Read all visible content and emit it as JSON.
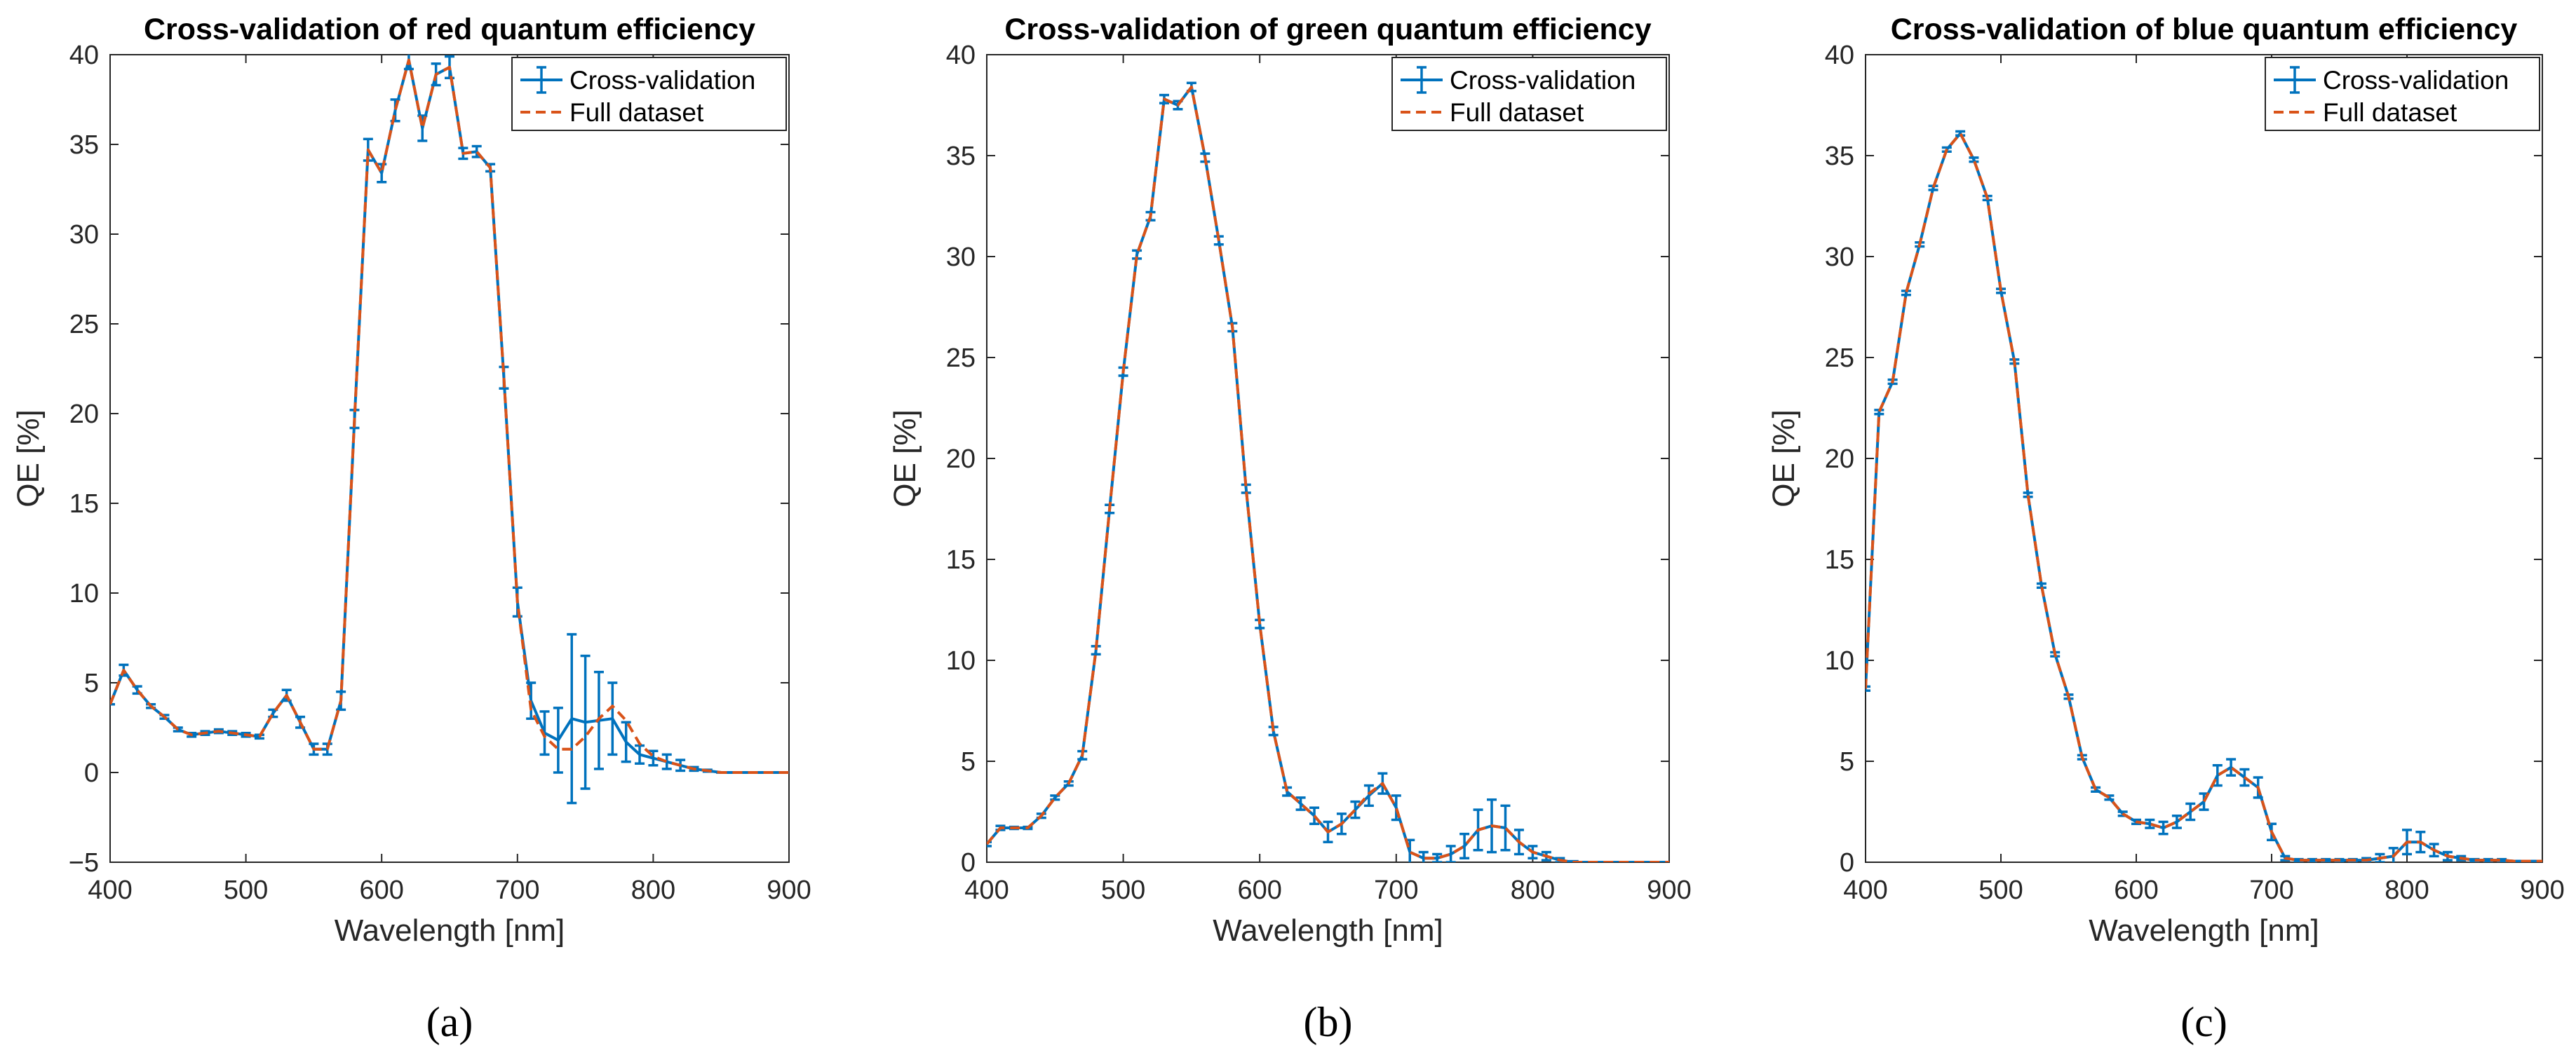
{
  "chart_data": [
    {
      "type": "line",
      "title": "Cross-validation of red quantum efficiency",
      "xlabel": "Wavelength [nm]",
      "ylabel": "QE [%]",
      "xlim": [
        400,
        900
      ],
      "ylim": [
        -5,
        40
      ],
      "xticks": [
        400,
        500,
        600,
        700,
        800,
        900
      ],
      "xtick_labels": [
        "400",
        "500",
        "600",
        "700",
        "800",
        "900"
      ],
      "yticks": [
        -5,
        0,
        5,
        10,
        15,
        20,
        25,
        30,
        35,
        40
      ],
      "ytick_labels": [
        "−5",
        "0",
        "5",
        "10",
        "15",
        "20",
        "25",
        "30",
        "35",
        "40"
      ],
      "legend": [
        "Cross-validation",
        "Full dataset"
      ],
      "legend_position": "top-right",
      "panel_label": "(a)",
      "x": [
        400,
        410,
        420,
        430,
        440,
        450,
        460,
        470,
        480,
        490,
        500,
        510,
        520,
        530,
        540,
        550,
        560,
        570,
        580,
        590,
        600,
        610,
        620,
        630,
        640,
        650,
        660,
        670,
        680,
        690,
        700,
        710,
        720,
        730,
        740,
        750,
        760,
        770,
        780,
        790,
        800,
        810,
        820,
        830,
        840,
        850,
        860,
        870,
        880,
        890,
        900
      ],
      "series": [
        {
          "name": "Cross-validation",
          "color": "#0072BD",
          "style": "solid",
          "values": [
            3.8,
            5.7,
            4.6,
            3.7,
            3.1,
            2.4,
            2.1,
            2.2,
            2.3,
            2.2,
            2.1,
            2.0,
            3.3,
            4.3,
            2.8,
            1.3,
            1.3,
            4.0,
            19.7,
            34.7,
            33.4,
            36.9,
            39.7,
            35.9,
            38.9,
            39.3,
            34.5,
            34.6,
            33.7,
            22.0,
            9.5,
            4.0,
            2.2,
            1.8,
            3.0,
            2.8,
            2.9,
            3.0,
            1.7,
            1.0,
            0.8,
            0.6,
            0.4,
            0.2,
            0.1,
            0.0,
            0.0,
            0.0,
            0.0,
            0.0,
            0.0
          ],
          "errors": [
            0,
            0.3,
            0.2,
            0.1,
            0.1,
            0.1,
            0.1,
            0.1,
            0.1,
            0.1,
            0.1,
            0.1,
            0.2,
            0.3,
            0.3,
            0.3,
            0.3,
            0.5,
            0.5,
            0.6,
            0.5,
            0.6,
            0.5,
            0.7,
            0.6,
            0.6,
            0.3,
            0.3,
            0.2,
            0.6,
            0.8,
            1.0,
            1.2,
            1.8,
            4.7,
            3.7,
            2.7,
            2.0,
            1.1,
            0.5,
            0.4,
            0.4,
            0.3,
            0.1,
            0.05,
            0,
            0,
            0,
            0,
            0,
            0
          ]
        },
        {
          "name": "Full dataset",
          "color": "#D95319",
          "style": "dashed",
          "values": [
            3.8,
            5.7,
            4.6,
            3.7,
            3.1,
            2.4,
            2.1,
            2.2,
            2.3,
            2.2,
            2.1,
            2.0,
            3.3,
            4.3,
            2.8,
            1.3,
            1.3,
            4.0,
            19.7,
            34.7,
            33.4,
            36.9,
            39.7,
            35.9,
            38.9,
            39.3,
            34.5,
            34.6,
            33.7,
            22.0,
            9.5,
            3.5,
            2.0,
            1.3,
            1.3,
            2.0,
            3.0,
            3.7,
            2.9,
            1.6,
            0.9,
            0.6,
            0.4,
            0.2,
            0.1,
            0.0,
            0.0,
            0.0,
            0.0,
            0.0,
            0.0
          ]
        }
      ]
    },
    {
      "type": "line",
      "title": "Cross-validation of green quantum efficiency",
      "xlabel": "Wavelength [nm]",
      "ylabel": "QE [%]",
      "xlim": [
        400,
        900
      ],
      "ylim": [
        0,
        40
      ],
      "xticks": [
        400,
        500,
        600,
        700,
        800,
        900
      ],
      "xtick_labels": [
        "400",
        "500",
        "600",
        "700",
        "800",
        "900"
      ],
      "yticks": [
        0,
        5,
        10,
        15,
        20,
        25,
        30,
        35,
        40
      ],
      "ytick_labels": [
        "0",
        "5",
        "10",
        "15",
        "20",
        "25",
        "30",
        "35",
        "40"
      ],
      "legend": [
        "Cross-validation",
        "Full dataset"
      ],
      "legend_position": "top-right",
      "panel_label": "(b)",
      "x": [
        400,
        410,
        420,
        430,
        440,
        450,
        460,
        470,
        480,
        490,
        500,
        510,
        520,
        530,
        540,
        550,
        560,
        570,
        580,
        590,
        600,
        610,
        620,
        630,
        640,
        650,
        660,
        670,
        680,
        690,
        700,
        710,
        720,
        730,
        740,
        750,
        760,
        770,
        780,
        790,
        800,
        810,
        820,
        830,
        840,
        850,
        860,
        870,
        880,
        890,
        900
      ],
      "series": [
        {
          "name": "Cross-validation",
          "color": "#0072BD",
          "style": "solid",
          "values": [
            0.9,
            1.7,
            1.7,
            1.7,
            2.3,
            3.2,
            3.9,
            5.3,
            10.5,
            17.5,
            24.3,
            30.1,
            32.0,
            37.8,
            37.5,
            38.4,
            34.9,
            30.8,
            26.5,
            18.5,
            11.8,
            6.5,
            3.5,
            2.9,
            2.3,
            1.5,
            1.9,
            2.6,
            3.3,
            3.9,
            2.7,
            0.5,
            0.2,
            0.2,
            0.4,
            0.8,
            1.6,
            1.8,
            1.7,
            1.0,
            0.5,
            0.3,
            0.1,
            0.0,
            0.0,
            0.0,
            0.0,
            0.0,
            0.0,
            0.0,
            0.0
          ],
          "errors": [
            0.1,
            0.1,
            0.05,
            0.05,
            0.1,
            0.1,
            0.1,
            0.2,
            0.2,
            0.2,
            0.2,
            0.2,
            0.2,
            0.2,
            0.2,
            0.2,
            0.2,
            0.2,
            0.2,
            0.2,
            0.2,
            0.2,
            0.2,
            0.3,
            0.4,
            0.5,
            0.5,
            0.4,
            0.5,
            0.5,
            0.6,
            0.6,
            0.3,
            0.2,
            0.4,
            0.6,
            1.0,
            1.3,
            1.1,
            0.6,
            0.3,
            0.2,
            0.1,
            0.05,
            0,
            0,
            0,
            0,
            0,
            0,
            0
          ]
        },
        {
          "name": "Full dataset",
          "color": "#D95319",
          "style": "dashed",
          "values": [
            0.9,
            1.7,
            1.7,
            1.7,
            2.3,
            3.2,
            3.9,
            5.3,
            10.5,
            17.5,
            24.3,
            30.1,
            32.0,
            37.8,
            37.5,
            38.4,
            34.9,
            30.8,
            26.5,
            18.5,
            11.8,
            6.5,
            3.5,
            2.9,
            2.3,
            1.5,
            1.9,
            2.6,
            3.4,
            3.9,
            2.7,
            0.5,
            0.2,
            0.2,
            0.4,
            0.8,
            1.6,
            1.8,
            1.7,
            1.0,
            0.5,
            0.3,
            0.1,
            0.0,
            0.0,
            0.0,
            0.0,
            0.0,
            0.0,
            0.0,
            0.0
          ]
        }
      ]
    },
    {
      "type": "line",
      "title": "Cross-validation of blue quantum efficiency",
      "xlabel": "Wavelength [nm]",
      "ylabel": "QE [%]",
      "xlim": [
        400,
        900
      ],
      "ylim": [
        0,
        40
      ],
      "xticks": [
        400,
        500,
        600,
        700,
        800,
        900
      ],
      "xtick_labels": [
        "400",
        "500",
        "600",
        "700",
        "800",
        "900"
      ],
      "yticks": [
        0,
        5,
        10,
        15,
        20,
        25,
        30,
        35,
        40
      ],
      "ytick_labels": [
        "0",
        "5",
        "10",
        "15",
        "20",
        "25",
        "30",
        "35",
        "40"
      ],
      "legend": [
        "Cross-validation",
        "Full dataset"
      ],
      "legend_position": "top-right",
      "panel_label": "(c)",
      "x": [
        400,
        410,
        420,
        430,
        440,
        450,
        460,
        470,
        480,
        490,
        500,
        510,
        520,
        530,
        540,
        550,
        560,
        570,
        580,
        590,
        600,
        610,
        620,
        630,
        640,
        650,
        660,
        670,
        680,
        690,
        700,
        710,
        720,
        730,
        740,
        750,
        760,
        770,
        780,
        790,
        800,
        810,
        820,
        830,
        840,
        850,
        860,
        870,
        880,
        890,
        900
      ],
      "series": [
        {
          "name": "Cross-validation",
          "color": "#0072BD",
          "style": "solid",
          "values": [
            8.6,
            22.3,
            23.8,
            28.2,
            30.6,
            33.4,
            35.3,
            36.1,
            34.8,
            32.9,
            28.3,
            24.8,
            18.2,
            13.7,
            10.3,
            8.2,
            5.2,
            3.6,
            3.2,
            2.4,
            2.0,
            1.9,
            1.7,
            2.0,
            2.5,
            3.0,
            4.3,
            4.7,
            4.2,
            3.7,
            1.5,
            0.2,
            0.1,
            0.1,
            0.1,
            0.1,
            0.1,
            0.1,
            0.2,
            0.3,
            1.0,
            1.0,
            0.6,
            0.3,
            0.2,
            0.1,
            0.1,
            0.1,
            0.05,
            0.05,
            0.05
          ],
          "errors": [
            0.1,
            0.1,
            0.1,
            0.1,
            0.1,
            0.1,
            0.1,
            0.1,
            0.1,
            0.1,
            0.1,
            0.1,
            0.1,
            0.1,
            0.1,
            0.1,
            0.1,
            0.1,
            0.1,
            0.1,
            0.1,
            0.2,
            0.3,
            0.3,
            0.4,
            0.4,
            0.5,
            0.4,
            0.4,
            0.5,
            0.4,
            0.1,
            0.05,
            0.05,
            0.05,
            0.05,
            0.05,
            0.1,
            0.2,
            0.4,
            0.6,
            0.5,
            0.3,
            0.2,
            0.1,
            0.05,
            0.05,
            0.05,
            0,
            0,
            0
          ]
        },
        {
          "name": "Full dataset",
          "color": "#D95319",
          "style": "dashed",
          "values": [
            8.6,
            22.3,
            23.8,
            28.2,
            30.6,
            33.4,
            35.3,
            36.1,
            34.8,
            32.9,
            28.3,
            24.8,
            18.2,
            13.7,
            10.3,
            8.2,
            5.2,
            3.6,
            3.2,
            2.4,
            2.0,
            1.9,
            1.7,
            2.0,
            2.5,
            3.0,
            4.3,
            4.7,
            4.2,
            3.7,
            1.5,
            0.2,
            0.1,
            0.1,
            0.1,
            0.1,
            0.1,
            0.1,
            0.2,
            0.3,
            1.0,
            1.0,
            0.6,
            0.3,
            0.2,
            0.1,
            0.1,
            0.1,
            0.05,
            0.05,
            0.05
          ]
        }
      ]
    }
  ]
}
